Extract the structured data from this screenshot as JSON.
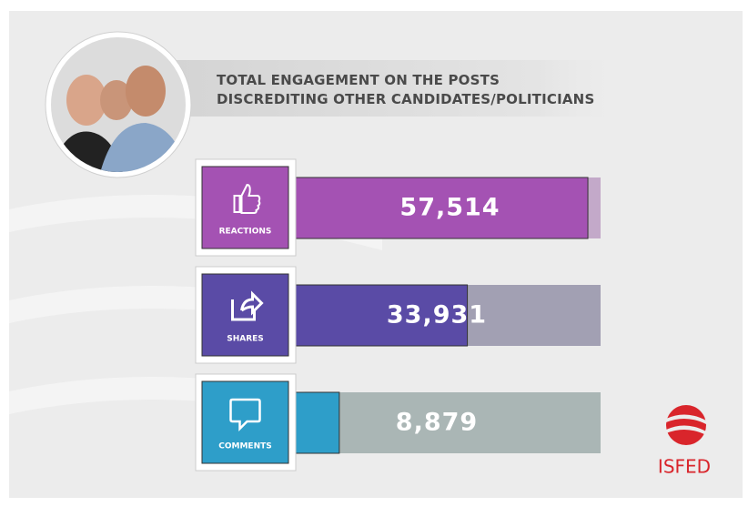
{
  "chart_data": {
    "type": "bar",
    "orientation": "horizontal",
    "title": "TOTAL ENGAGEMENT ON THE POSTS DISCREDITING OTHER CANDIDATES/POLITICIANS",
    "categories": [
      "REACTIONS",
      "SHARES",
      "COMMENTS"
    ],
    "values": [
      57514,
      33931,
      8879
    ],
    "value_labels": [
      "57,514",
      "33,931",
      "8,879"
    ],
    "colors": [
      "#a452b3",
      "#5a4ba6",
      "#2e9ec9"
    ],
    "track_colors": [
      "#c3a9c9",
      "#a2a0b3",
      "#aab6b5"
    ],
    "xlim": [
      0,
      60000
    ],
    "logo": "ISFED"
  }
}
